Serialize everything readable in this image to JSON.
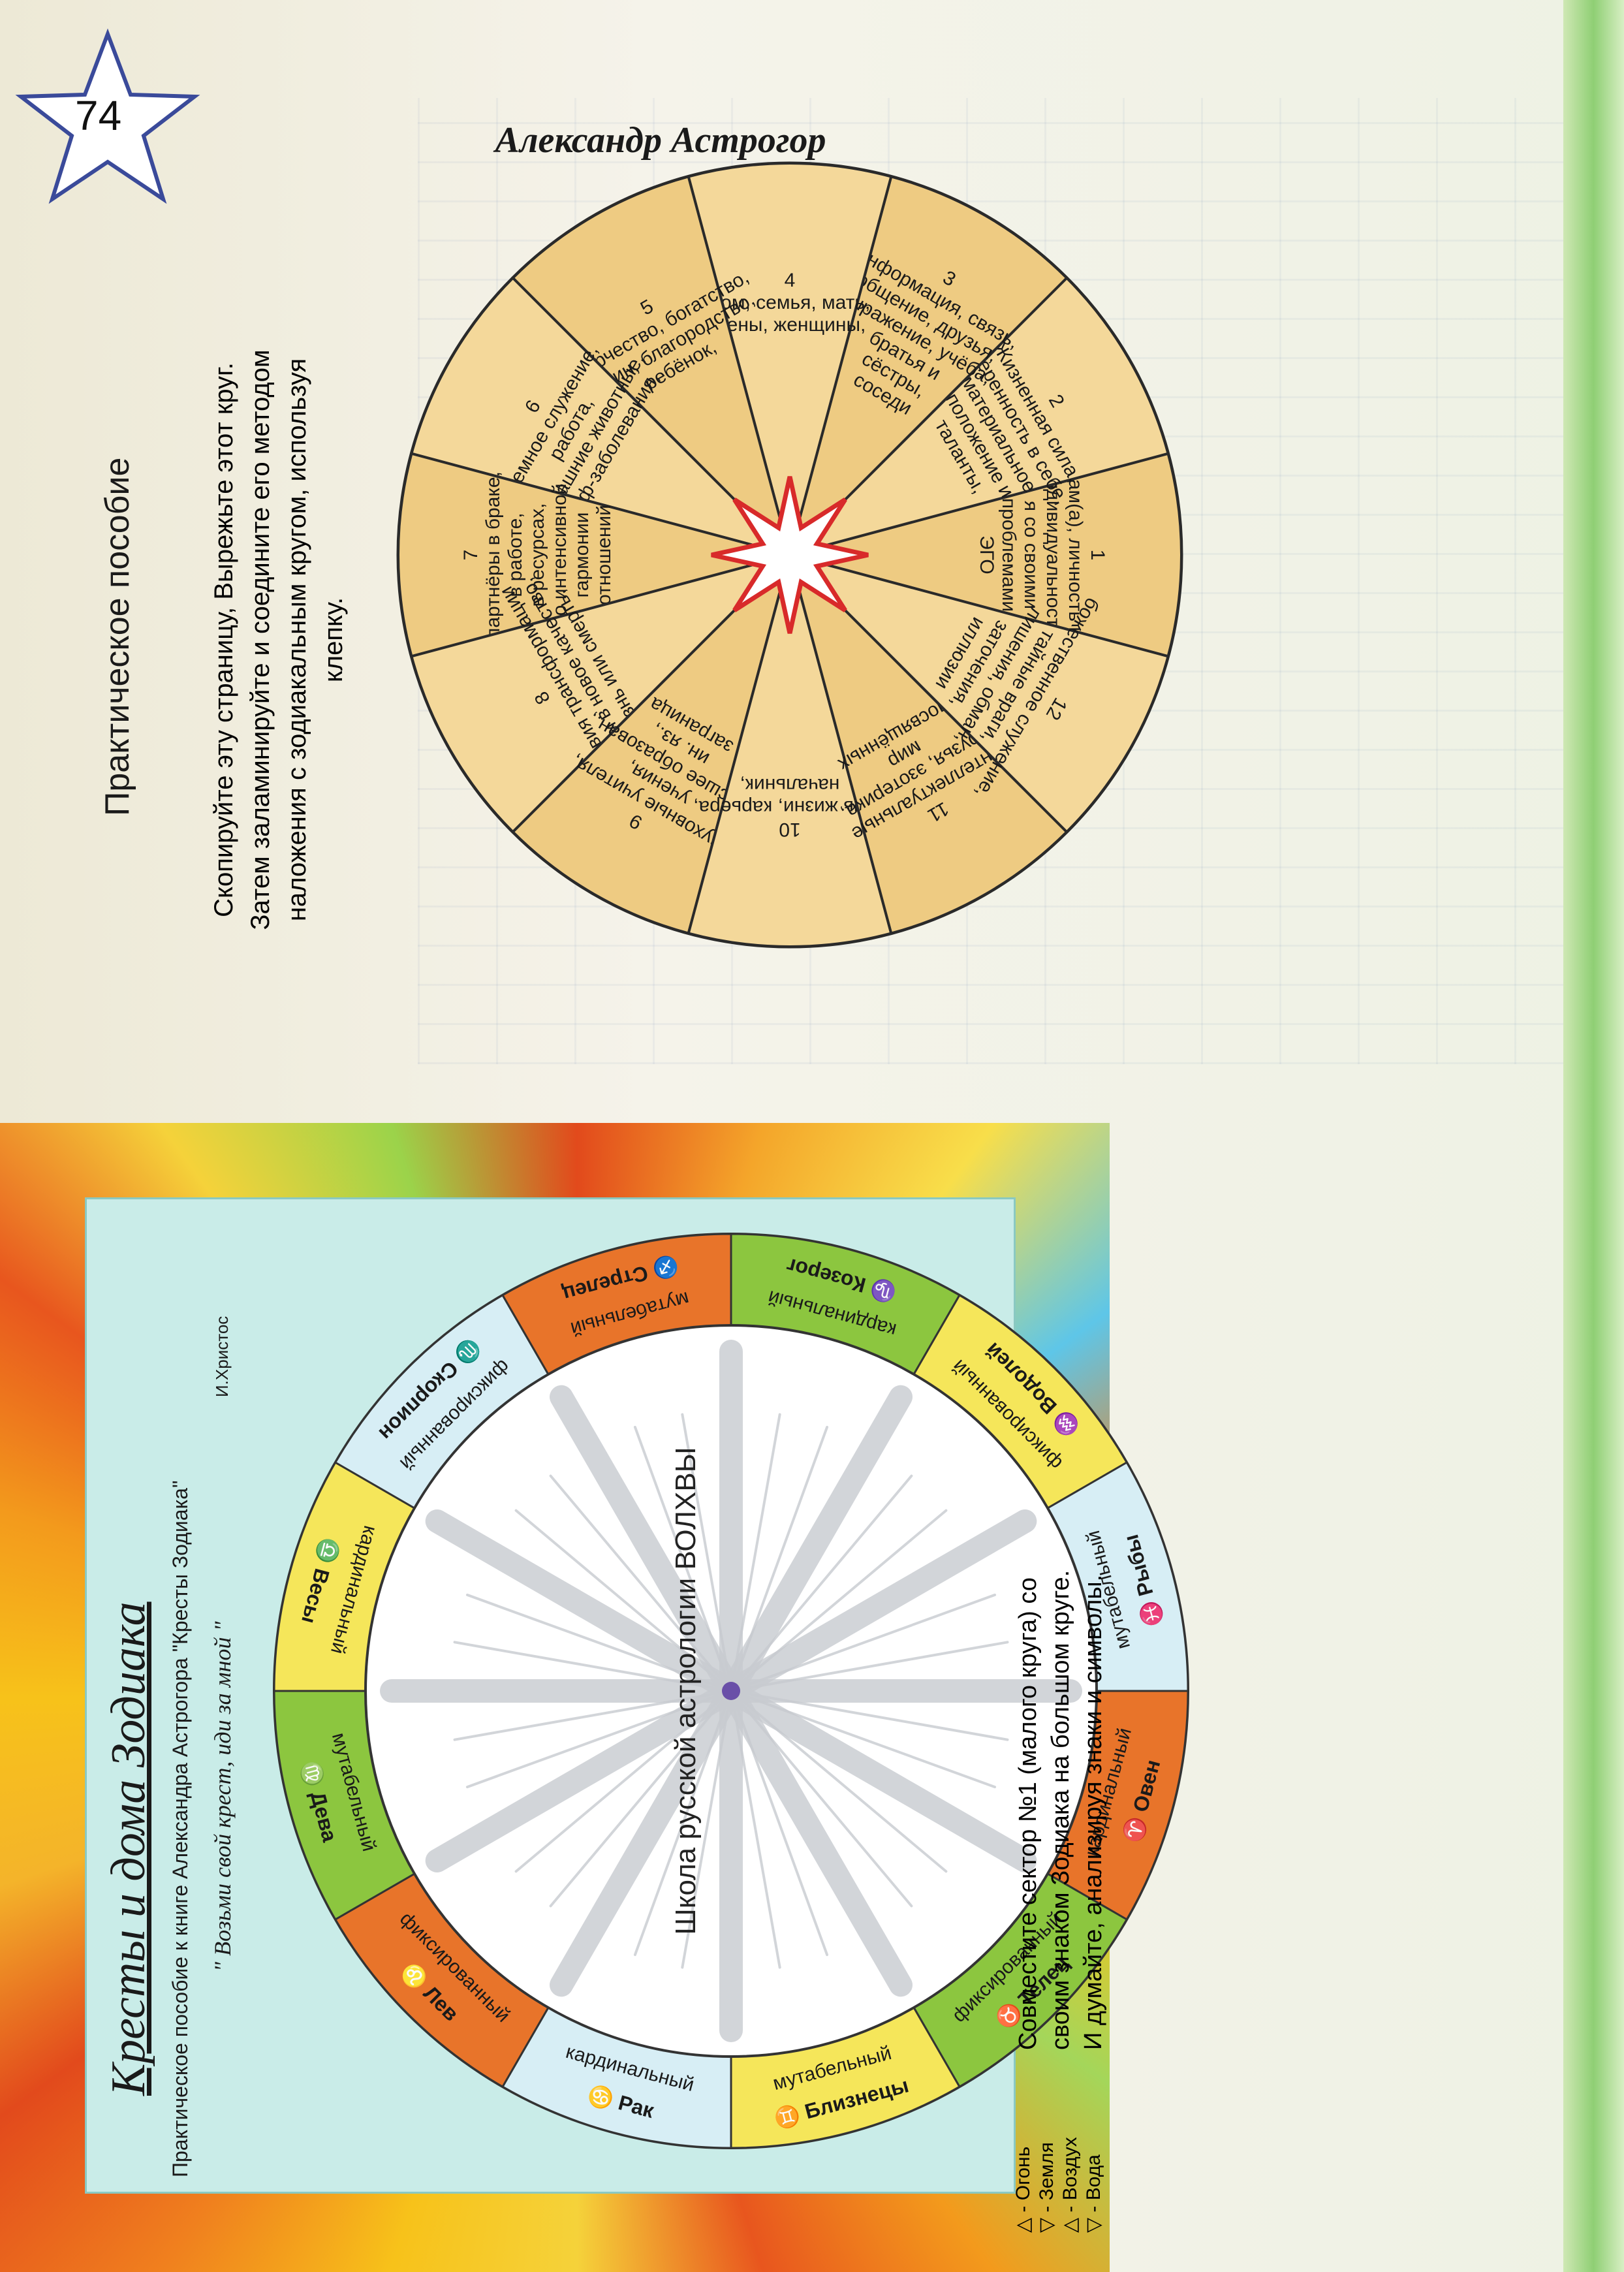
{
  "page_number": "74",
  "running_header": "Александр Астрогор",
  "right_panel": {
    "title": "Кресты и дома Зодиака",
    "subtitle": "Практическое пособие к книге Александра Астрогора \"Кресты Зодиака\"",
    "quote": "\" Возьми свой крест, иди за мной \"",
    "quote_author": "И.Христос",
    "school_label": "Школа русской астрологии ВОЛХВЫ",
    "legend": [
      {
        "glyph": "△",
        "label": "- Огонь"
      },
      {
        "glyph": "▽",
        "label": "- Земля"
      },
      {
        "glyph": "△",
        "label": "- Воздух"
      },
      {
        "glyph": "▽",
        "label": "- Вода"
      }
    ],
    "instruction_lines": [
      "Совместите сектор №1 (малого круга) со",
      "своим знаком Зодиака на большом круге.",
      "И думайте, анализируя знаки и символы."
    ],
    "zodiac_sectors": [
      {
        "sign": "Овен",
        "glyph": "♈",
        "cross": "кардинальный",
        "color": "#e8742a"
      },
      {
        "sign": "Телец",
        "glyph": "♉",
        "cross": "фиксированный",
        "color": "#8cc63f"
      },
      {
        "sign": "Близнецы",
        "glyph": "♊",
        "cross": "мутабельный",
        "color": "#f5e65a"
      },
      {
        "sign": "Рак",
        "glyph": "♋",
        "cross": "кардинальный",
        "color": "#d7eef5"
      },
      {
        "sign": "Лев",
        "glyph": "♌",
        "cross": "фиксированный",
        "color": "#e8742a"
      },
      {
        "sign": "Дева",
        "glyph": "♍",
        "cross": "мутабельный",
        "color": "#8cc63f"
      },
      {
        "sign": "Весы",
        "glyph": "♎",
        "cross": "кардинальный",
        "color": "#f5e65a"
      },
      {
        "sign": "Скорпион",
        "glyph": "♏",
        "cross": "фиксированный",
        "color": "#d7eef5"
      },
      {
        "sign": "Стрелец",
        "glyph": "♐",
        "cross": "мутабельный",
        "color": "#e8742a"
      },
      {
        "sign": "Козерог",
        "glyph": "♑",
        "cross": "кардинальный",
        "color": "#8cc63f"
      },
      {
        "sign": "Водолей",
        "glyph": "♒",
        "cross": "фиксированный",
        "color": "#f5e65a"
      },
      {
        "sign": "Рыбы",
        "glyph": "♓",
        "cross": "мутабельный",
        "color": "#d7eef5"
      }
    ]
  },
  "left_panel": {
    "title": "Практическое пособие",
    "instruction_lines": [
      "Скопируйте эту страницу, Вырежьте этот круг.",
      "Затем заламинируйте   и соедините его методом",
      "наложения с зодиакальным кругом, используя клепку."
    ],
    "houses": [
      {
        "num": "1",
        "lines": [
          "Я сам(а), личность или",
          "индивидуальность,",
          "я со своими",
          "проблемами",
          "ЭГО"
        ]
      },
      {
        "num": "2",
        "lines": [
          "Жизненная сила,",
          "уверенность в себе,",
          "материальное",
          "положение и",
          "таланты,"
        ]
      },
      {
        "num": "3",
        "lines": [
          "информация, связь,",
          "общение, друзья,",
          "выражение, учёба,",
          "братья и",
          "сёстры,",
          "соседи"
        ]
      },
      {
        "num": "4",
        "lines": [
          "дом, семья, мать,",
          "жены, женщины,"
        ]
      },
      {
        "num": "5",
        "lines": [
          "творчество, богатство,",
          "барин, благородство,",
          "ребёнок,"
        ]
      },
      {
        "num": "6",
        "lines": [
          "земное служение,",
          "работа,",
          "домашние животные,",
          "проф-заболевания,"
        ]
      },
      {
        "num": "7",
        "lines": [
          "партнёры в браке,",
          "в работе,",
          "в ресурсах,",
          "по интенсивной",
          "гармонии",
          "отношений"
        ]
      },
      {
        "num": "8",
        "lines": [
          "Условия трансформации",
          "жизни в новое качество,",
          "жизнь или смерть,"
        ]
      },
      {
        "num": "9",
        "lines": [
          "духовные учителя,",
          "учения,",
          "высшее образован.,",
          "ин. яз.,",
          "заграница"
        ]
      },
      {
        "num": "10",
        "lines": [
          "цель жизни, карьера,",
          "начальник,"
        ]
      },
      {
        "num": "11",
        "lines": [
          "интеллектуальные",
          "друзья, эзотерика,",
          "мир",
          "посвящённых"
        ]
      },
      {
        "num": "12",
        "lines": [
          "божественное служение,",
          "тайные враги,",
          "лишения, обман,",
          "заточения,",
          "иллюзии"
        ]
      }
    ]
  }
}
